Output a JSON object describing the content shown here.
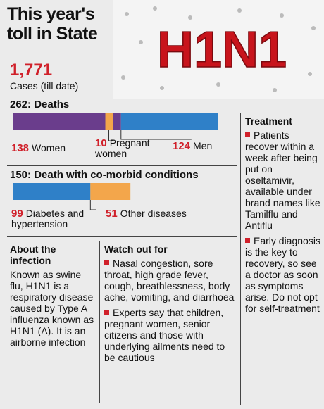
{
  "title": "This year's toll in State",
  "image_text": "H1N1",
  "cases": {
    "value": {
      "value": 1771,
      "label": "1,771"
    },
    "label": "Cases (till date)"
  },
  "deaths": {
    "total": 262,
    "label": "Deaths",
    "categories": [
      "Women",
      "Pregnant women",
      "Men"
    ],
    "values": [
      138,
      10,
      124
    ],
    "colors": [
      "#6a3d8c",
      "#f3a64b",
      "#2f80c8"
    ]
  },
  "comorbid": {
    "total": 150,
    "label": "Death with co-morbid conditions",
    "categories": [
      "Diabetes and hypertension",
      "Other diseases"
    ],
    "values": [
      99,
      51
    ],
    "colors": [
      "#2f80c8",
      "#f3a64b"
    ]
  },
  "about": {
    "title": "About the infection",
    "text": "Known as swine flu, H1N1 is a respiratory disease caused by Type A influenza known as H1N1 (A). It is an airborne infection"
  },
  "watch_out": {
    "title": "Watch out for",
    "items": [
      "Nasal congestion, sore throat, high grade fever, cough, breathlessness, body ache, vomiting, and diarrhoea",
      "Experts say that children, pregnant women, senior citizens and those with underlying ailments need to be cautious"
    ]
  },
  "treatment": {
    "title": "Treatment",
    "items": [
      "Patients recover within a week after being put on oseltamivir, available under brand names like Tamilflu and Antiflu",
      "Early diagnosis is the key to recovery, so see a doctor as soon as symptoms arise. Do not opt for self-treatment"
    ]
  }
}
